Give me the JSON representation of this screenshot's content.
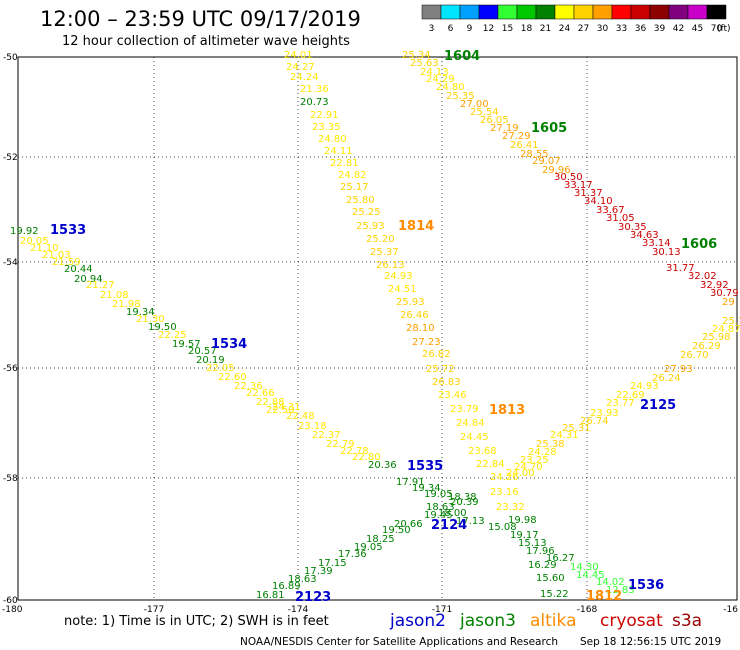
{
  "header": {
    "title": "12:00 – 23:59 UTC 09/17/2019",
    "subtitle": "12 hour collection of altimeter wave heights"
  },
  "colorbar": {
    "unit": "(ft)",
    "bins": [
      {
        "label": "3",
        "color": "#808080"
      },
      {
        "label": "6",
        "color": "#00e5ff"
      },
      {
        "label": "9",
        "color": "#00a0ff"
      },
      {
        "label": "12",
        "color": "#0000ff"
      },
      {
        "label": "15",
        "color": "#32ff32"
      },
      {
        "label": "18",
        "color": "#00c800"
      },
      {
        "label": "21",
        "color": "#008200"
      },
      {
        "label": "24",
        "color": "#ffff00"
      },
      {
        "label": "27",
        "color": "#ffd200"
      },
      {
        "label": "30",
        "color": "#ffa000"
      },
      {
        "label": "33",
        "color": "#ff0000"
      },
      {
        "label": "36",
        "color": "#c80000"
      },
      {
        "label": "39",
        "color": "#8c0000"
      },
      {
        "label": "42",
        "color": "#800080"
      },
      {
        "label": "45",
        "color": "#c800c8"
      },
      {
        "label": "70",
        "color": "#000000"
      }
    ]
  },
  "map": {
    "lon_range": [
      -180,
      -165
    ],
    "lat_range": [
      -60,
      -50
    ],
    "lon_ticks": [
      "-180",
      "-177",
      "-174",
      "-171",
      "-168",
      "-16"
    ],
    "lat_ticks": [
      "-50",
      "-52",
      "-54",
      "-56",
      "-58",
      "-60"
    ],
    "grid": "dotted",
    "tracks": [
      {
        "satellite": "jason2",
        "color": "#0000cc",
        "points": [
          {
            "v": "19.92",
            "c": "#008000"
          },
          {
            "v": "20.05",
            "c": "#ffe600"
          },
          {
            "v": "21.10",
            "c": "#ffe600"
          },
          {
            "v": "21.03",
            "c": "#ffe600"
          },
          {
            "v": "21.59",
            "c": "#ffe600"
          },
          {
            "v": "20.44",
            "c": "#008000"
          },
          {
            "v": "20.94",
            "c": "#008000"
          },
          {
            "v": "21.27",
            "c": "#ffe600"
          },
          {
            "v": "21.08",
            "c": "#ffe600"
          },
          {
            "v": "21.98",
            "c": "#ffe600"
          },
          {
            "v": "19.34",
            "c": "#008000"
          },
          {
            "v": "21.30",
            "c": "#ffe600"
          },
          {
            "v": "19.50",
            "c": "#008000"
          },
          {
            "v": "22.25",
            "c": "#ffe600"
          },
          {
            "v": "19.57",
            "c": "#008000"
          },
          {
            "v": "20.57",
            "c": "#008000"
          },
          {
            "v": "20.19",
            "c": "#008000"
          },
          {
            "v": "22.05",
            "c": "#ffe600"
          },
          {
            "v": "22.60",
            "c": "#ffe600"
          },
          {
            "v": "22.36",
            "c": "#ffe600"
          },
          {
            "v": "22.66",
            "c": "#ffe600"
          },
          {
            "v": "22.88",
            "c": "#ffe600"
          },
          {
            "v": "22.50",
            "c": "#ffe600"
          },
          {
            "v": "24.31",
            "c": "#ffe600"
          },
          {
            "v": "22.48",
            "c": "#ffe600"
          },
          {
            "v": "23.18",
            "c": "#ffe600"
          },
          {
            "v": "22.37",
            "c": "#ffe600"
          },
          {
            "v": "22.79",
            "c": "#ffe600"
          },
          {
            "v": "22.78",
            "c": "#ffe600"
          },
          {
            "v": "22.80",
            "c": "#ffe600"
          },
          {
            "v": "20.36",
            "c": "#008000"
          }
        ]
      },
      {
        "satellite": "jason3",
        "color": "#008000",
        "points": [
          {
            "v": "25.34",
            "c": "#ffd200"
          },
          {
            "v": "25.63",
            "c": "#ffd200"
          },
          {
            "v": "24.13",
            "c": "#ffe600"
          },
          {
            "v": "24.29",
            "c": "#ffe600"
          },
          {
            "v": "24.80",
            "c": "#ffe600"
          },
          {
            "v": "25.35",
            "c": "#ffd200"
          },
          {
            "v": "27.00",
            "c": "#ffa000"
          },
          {
            "v": "25.54",
            "c": "#ffd200"
          },
          {
            "v": "26.05",
            "c": "#ffd200"
          },
          {
            "v": "27.19",
            "c": "#ffa000"
          },
          {
            "v": "27.29",
            "c": "#ffa000"
          },
          {
            "v": "26.41",
            "c": "#ffd200"
          },
          {
            "v": "28.55",
            "c": "#ffa000"
          },
          {
            "v": "29.07",
            "c": "#ffa000"
          },
          {
            "v": "29.96",
            "c": "#ffa000"
          },
          {
            "v": "30.50",
            "c": "#cc0000"
          },
          {
            "v": "33.17",
            "c": "#cc0000"
          },
          {
            "v": "31.37",
            "c": "#cc0000"
          },
          {
            "v": "34.10",
            "c": "#cc0000"
          },
          {
            "v": "33.67",
            "c": "#cc0000"
          },
          {
            "v": "31.05",
            "c": "#cc0000"
          },
          {
            "v": "30.35",
            "c": "#cc0000"
          },
          {
            "v": "34.63",
            "c": "#cc0000"
          },
          {
            "v": "33.14",
            "c": "#cc0000"
          },
          {
            "v": "30.13",
            "c": "#cc0000"
          },
          {
            "v": "31.77",
            "c": "#cc0000"
          },
          {
            "v": "32.02",
            "c": "#cc0000"
          },
          {
            "v": "32.92",
            "c": "#cc0000"
          },
          {
            "v": "30.79",
            "c": "#cc0000"
          },
          {
            "v": "29",
            "c": "#ffa000"
          }
        ]
      },
      {
        "satellite": "altika",
        "color": "#ff8c00",
        "points": [
          {
            "v": "24.01",
            "c": "#ffe600"
          },
          {
            "v": "24.27",
            "c": "#ffe600"
          },
          {
            "v": "24.24",
            "c": "#ffe600"
          },
          {
            "v": "21.36",
            "c": "#ffe600"
          },
          {
            "v": "20.73",
            "c": "#008000"
          },
          {
            "v": "22.91",
            "c": "#ffe600"
          },
          {
            "v": "23.35",
            "c": "#ffe600"
          },
          {
            "v": "24.80",
            "c": "#ffe600"
          },
          {
            "v": "24.11",
            "c": "#ffe600"
          },
          {
            "v": "22.81",
            "c": "#ffe600"
          },
          {
            "v": "24.82",
            "c": "#ffe600"
          },
          {
            "v": "25.17",
            "c": "#ffd200"
          },
          {
            "v": "25.80",
            "c": "#ffd200"
          },
          {
            "v": "25.25",
            "c": "#ffd200"
          },
          {
            "v": "25.93",
            "c": "#ffd200"
          },
          {
            "v": "25.20",
            "c": "#ffd200"
          },
          {
            "v": "25.37",
            "c": "#ffd200"
          },
          {
            "v": "26.13",
            "c": "#ffd200"
          },
          {
            "v": "24.93",
            "c": "#ffe600"
          },
          {
            "v": "24.51",
            "c": "#ffe600"
          },
          {
            "v": "25.93",
            "c": "#ffd200"
          },
          {
            "v": "26.46",
            "c": "#ffd200"
          },
          {
            "v": "28.10",
            "c": "#ffa000"
          },
          {
            "v": "27.23",
            "c": "#ffa000"
          },
          {
            "v": "26.82",
            "c": "#ffd200"
          },
          {
            "v": "25.72",
            "c": "#ffd200"
          },
          {
            "v": "26.83",
            "c": "#ffd200"
          },
          {
            "v": "23.46",
            "c": "#ffe600"
          },
          {
            "v": "23.79",
            "c": "#ffe600"
          },
          {
            "v": "24.84",
            "c": "#ffe600"
          },
          {
            "v": "24.45",
            "c": "#ffe600"
          },
          {
            "v": "23.68",
            "c": "#ffe600"
          },
          {
            "v": "22.84",
            "c": "#ffe600"
          },
          {
            "v": "24.26",
            "c": "#ffe600"
          },
          {
            "v": "23.16",
            "c": "#ffe600"
          },
          {
            "v": "23.32",
            "c": "#ffe600"
          }
        ]
      },
      {
        "satellite": "cryosat",
        "color": "#cc0000",
        "points": [
          {
            "v": "25.72",
            "c": "#ffd200"
          },
          {
            "v": "24.87",
            "c": "#ffe600"
          },
          {
            "v": "25.98",
            "c": "#ffd200"
          },
          {
            "v": "26.29",
            "c": "#ffd200"
          },
          {
            "v": "26.70",
            "c": "#ffd200"
          },
          {
            "v": "27.93",
            "c": "#ffa000"
          },
          {
            "v": "26.24",
            "c": "#ffd200"
          },
          {
            "v": "24.93",
            "c": "#ffe600"
          },
          {
            "v": "22.69",
            "c": "#ffe600"
          },
          {
            "v": "23.77",
            "c": "#ffe600"
          },
          {
            "v": "23.93",
            "c": "#ffe600"
          },
          {
            "v": "26.74",
            "c": "#ffd200"
          },
          {
            "v": "25.31",
            "c": "#ffd200"
          },
          {
            "v": "24.31",
            "c": "#ffe600"
          },
          {
            "v": "25.38",
            "c": "#ffd200"
          },
          {
            "v": "24.28",
            "c": "#ffe600"
          },
          {
            "v": "23.25",
            "c": "#ffe600"
          },
          {
            "v": "24.70",
            "c": "#ffe600"
          },
          {
            "v": "24.00",
            "c": "#ffe600"
          }
        ]
      },
      {
        "satellite": "s3a",
        "color": "#990000",
        "points": [
          {
            "v": "17.91",
            "c": "#008000"
          },
          {
            "v": "19.34",
            "c": "#008000"
          },
          {
            "v": "19.05",
            "c": "#008000"
          },
          {
            "v": "18.38",
            "c": "#008000"
          },
          {
            "v": "20.39",
            "c": "#008000"
          },
          {
            "v": "18.63",
            "c": "#008000"
          },
          {
            "v": "19.45",
            "c": "#008000"
          },
          {
            "v": "20.66",
            "c": "#008000"
          },
          {
            "v": "19.50",
            "c": "#008000"
          },
          {
            "v": "18.25",
            "c": "#008000"
          },
          {
            "v": "19.05",
            "c": "#008000"
          },
          {
            "v": "17.36",
            "c": "#008000"
          },
          {
            "v": "17.15",
            "c": "#008000"
          },
          {
            "v": "17.39",
            "c": "#008000"
          },
          {
            "v": "18.63",
            "c": "#008000"
          },
          {
            "v": "16.89",
            "c": "#008000"
          },
          {
            "v": "16.81",
            "c": "#008000"
          },
          {
            "v": "18.00",
            "c": "#008000"
          },
          {
            "v": "17.13",
            "c": "#008000"
          },
          {
            "v": "19.98",
            "c": "#008000"
          },
          {
            "v": "15.08",
            "c": "#008000"
          },
          {
            "v": "19.17",
            "c": "#008000"
          },
          {
            "v": "15.13",
            "c": "#008000"
          },
          {
            "v": "17.96",
            "c": "#008000"
          },
          {
            "v": "16.27",
            "c": "#008000"
          },
          {
            "v": "16.29",
            "c": "#008000"
          },
          {
            "v": "14.30",
            "c": "#32ff32"
          },
          {
            "v": "15.60",
            "c": "#008000"
          },
          {
            "v": "14.45",
            "c": "#32ff32"
          },
          {
            "v": "14.02",
            "c": "#32ff32"
          },
          {
            "v": "15.22",
            "c": "#008000"
          },
          {
            "v": "12.83",
            "c": "#32ff32"
          }
        ]
      }
    ],
    "pass_labels": [
      {
        "text": "1604",
        "color": "#008000"
      },
      {
        "text": "1605",
        "color": "#008000"
      },
      {
        "text": "1606",
        "color": "#008000"
      },
      {
        "text": "1814",
        "color": "#ff8c00"
      },
      {
        "text": "1533",
        "color": "#0000cc"
      },
      {
        "text": "1534",
        "color": "#0000cc"
      },
      {
        "text": "1813",
        "color": "#ff8c00"
      },
      {
        "text": "2125",
        "color": "#0000cc"
      },
      {
        "text": "1535",
        "color": "#0000cc"
      },
      {
        "text": "2124",
        "color": "#0000cc"
      },
      {
        "text": "1536",
        "color": "#0000cc"
      },
      {
        "text": "2123",
        "color": "#0000cc"
      },
      {
        "text": "1812",
        "color": "#ff8c00"
      }
    ]
  },
  "footer": {
    "note": "note: 1) Time is in UTC; 2) SWH is in feet",
    "legend": [
      {
        "name": "jason2",
        "color": "#0000cc"
      },
      {
        "name": "jason3",
        "color": "#008000"
      },
      {
        "name": "altika",
        "color": "#ff8c00"
      },
      {
        "name": "cryosat",
        "color": "#cc0000"
      },
      {
        "name": "s3a",
        "color": "#990000"
      }
    ],
    "credit": "NOAA/NESDIS Center for Satellite Applications and Research",
    "timestamp": "Sep 18 12:56:15 UTC 2019"
  }
}
